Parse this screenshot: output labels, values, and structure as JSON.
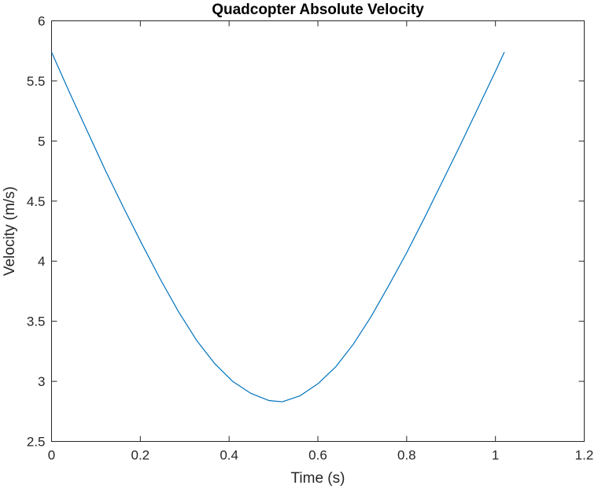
{
  "chart_data": {
    "type": "line",
    "title": "Quadcopter Absolute Velocity",
    "xlabel": "Time (s)",
    "ylabel": "Velocity (m/s)",
    "xlim": [
      0,
      1.2
    ],
    "ylim": [
      2.5,
      6
    ],
    "xticks": [
      0,
      0.2,
      0.4,
      0.6,
      0.8,
      1,
      1.2
    ],
    "xtick_labels": [
      "0",
      "0.2",
      "0.4",
      "0.6",
      "0.8",
      "1",
      "1.2"
    ],
    "yticks": [
      2.5,
      3,
      3.5,
      4,
      4.5,
      5,
      5.5,
      6
    ],
    "ytick_labels": [
      "2.5",
      "3",
      "3.5",
      "4",
      "4.5",
      "5",
      "5.5",
      "6"
    ],
    "grid": false,
    "series": [
      {
        "color": "#0072BD",
        "x": [
          0,
          0.041,
          0.082,
          0.122,
          0.163,
          0.204,
          0.245,
          0.286,
          0.327,
          0.367,
          0.408,
          0.449,
          0.49,
          0.52,
          0.56,
          0.6,
          0.64,
          0.68,
          0.72,
          0.76,
          0.8,
          0.84,
          0.88,
          0.92,
          0.96,
          1.0,
          1.02
        ],
        "y": [
          5.74,
          5.4,
          5.07,
          4.75,
          4.44,
          4.14,
          3.85,
          3.58,
          3.34,
          3.15,
          3.0,
          2.9,
          2.84,
          2.83,
          2.88,
          2.98,
          3.12,
          3.31,
          3.54,
          3.8,
          4.07,
          4.36,
          4.66,
          4.96,
          5.27,
          5.58,
          5.74
        ]
      }
    ]
  }
}
